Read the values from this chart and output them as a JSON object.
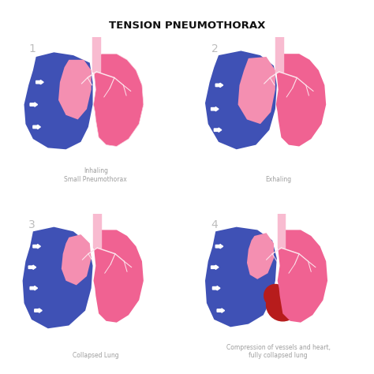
{
  "title": "TENSION PNEUMOTHORAX",
  "background_color": "#ffffff",
  "pink_lung": "#f06292",
  "pink_medium": "#f48fb1",
  "pink_light": "#fce4ec",
  "blue_air": "#3f51b5",
  "dark_red_heart": "#b71c1c",
  "trachea_color": "#f8bbd0",
  "arrow_color": "#ffffff",
  "number_color": "#bdbdbd",
  "label_color": "#9e9e9e",
  "labels": [
    "Inhaling\nSmall Pneumothorax",
    "Exhaling",
    "Collapsed Lung",
    "Compression of vessels and heart,\nfully collapsed lung"
  ],
  "numbers": [
    "1",
    "2",
    "3",
    "4"
  ]
}
